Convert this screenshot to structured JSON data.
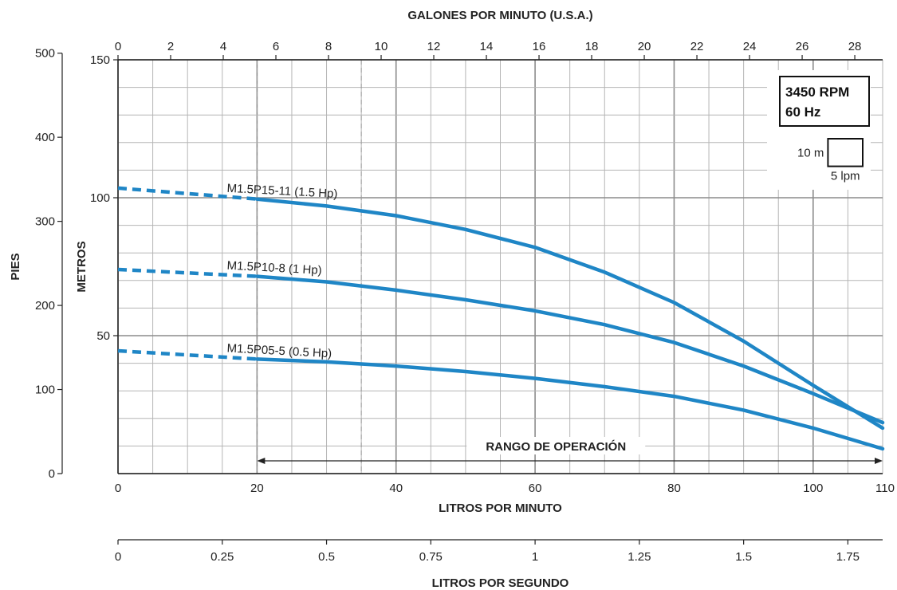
{
  "chart_data": {
    "type": "line",
    "top_axis_title": "GALONES POR MINUTO (U.S.A.)",
    "top_axis_ticks": [
      "0",
      "2",
      "4",
      "6",
      "8",
      "10",
      "12",
      "14",
      "16",
      "18",
      "20",
      "22",
      "24",
      "26",
      "28"
    ],
    "bottom_axis_title": "LITROS POR MINUTO",
    "bottom_axis_ticks": [
      "0",
      "20",
      "40",
      "60",
      "80",
      "100",
      "110"
    ],
    "lps_axis_title": "LITROS POR SEGUNDO",
    "lps_axis_ticks": [
      "0",
      "0.25",
      "0.5",
      "0.75",
      "1",
      "1.25",
      "1.5",
      "1.75"
    ],
    "meters_axis_title": "METROS",
    "meters_axis_ticks": [
      "50",
      "100",
      "150"
    ],
    "feet_axis_title": "PIES",
    "feet_axis_ticks": [
      "0",
      "100",
      "200",
      "300",
      "400",
      "500"
    ],
    "xlim_lpm": [
      0,
      110
    ],
    "ylim_m": [
      0,
      150
    ],
    "legend": {
      "line1": "3450 RPM",
      "line2": "60 Hz",
      "scale_v": "10 m",
      "scale_h": "5 lpm"
    },
    "operating_range": {
      "label": "RANGO DE OPERACIÓN",
      "from_lpm": 20,
      "to_lpm": 110
    },
    "color": "#1f86c6",
    "series": [
      {
        "name": "M1.5P15-11 (1.5 Hp)",
        "x": [
          0,
          20,
          30,
          40,
          50,
          60,
          70,
          80,
          90,
          100,
          110
        ],
        "y": [
          103.5,
          99.5,
          97.0,
          93.5,
          88.5,
          82.0,
          73.0,
          62.0,
          48.0,
          32.0,
          16.5
        ]
      },
      {
        "name": "M1.5P10-8 (1 Hp)",
        "x": [
          0,
          20,
          30,
          40,
          50,
          60,
          70,
          80,
          90,
          100,
          110
        ],
        "y": [
          74.0,
          71.5,
          69.5,
          66.5,
          63.0,
          59.0,
          54.0,
          47.5,
          39.0,
          29.0,
          18.5
        ]
      },
      {
        "name": "M1.5P05-5 (0.5 Hp)",
        "x": [
          0,
          20,
          30,
          40,
          50,
          60,
          70,
          80,
          90,
          100,
          110
        ],
        "y": [
          44.5,
          41.5,
          40.5,
          39.0,
          37.0,
          34.5,
          31.5,
          28.0,
          23.0,
          16.5,
          9.0
        ]
      }
    ]
  }
}
